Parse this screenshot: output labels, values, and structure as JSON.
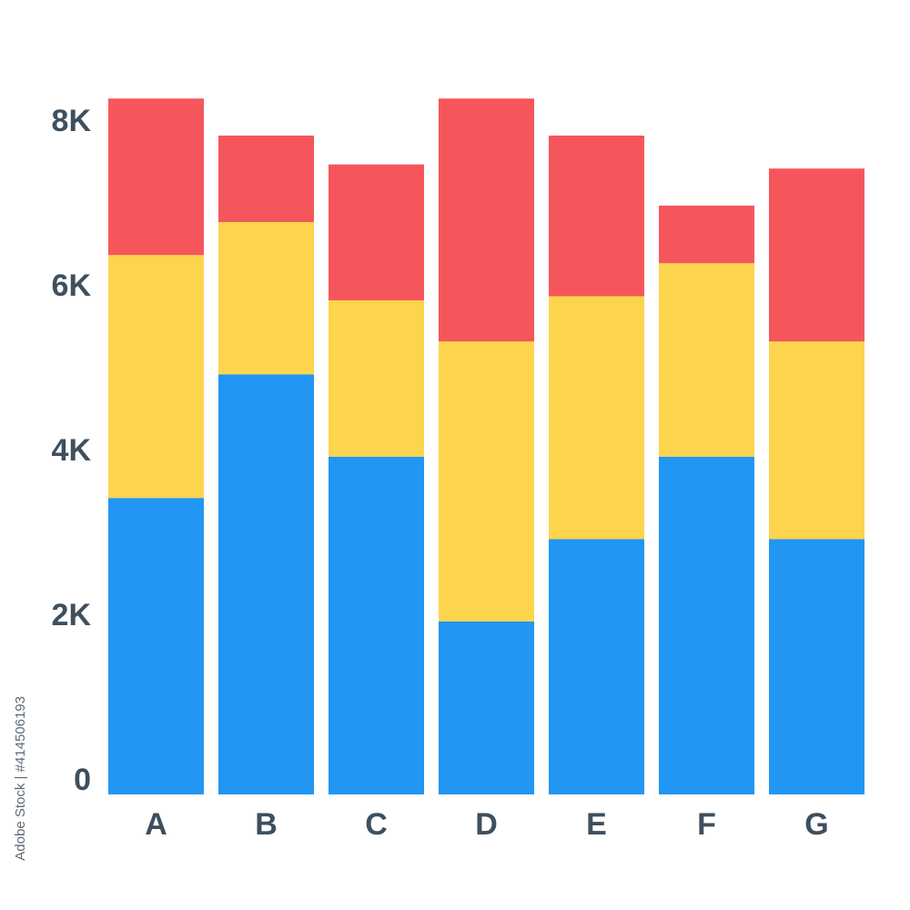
{
  "chart_data": {
    "type": "bar",
    "stacked": true,
    "categories": [
      "A",
      "B",
      "C",
      "D",
      "E",
      "F",
      "G"
    ],
    "series": [
      {
        "color": "#2196f3",
        "values": [
          3600,
          5100,
          4100,
          2100,
          3100,
          4100,
          3100
        ]
      },
      {
        "color": "#fdd44d",
        "values": [
          2950,
          1850,
          1900,
          3400,
          2950,
          2350,
          2400
        ]
      },
      {
        "color": "#f5565b",
        "values": [
          1900,
          1050,
          1650,
          2950,
          1950,
          700,
          2100
        ]
      }
    ],
    "yticks": [
      {
        "value": 0,
        "label": "0"
      },
      {
        "value": 2000,
        "label": "2K"
      },
      {
        "value": 4000,
        "label": "4K"
      },
      {
        "value": 6000,
        "label": "6K"
      },
      {
        "value": 8000,
        "label": "8K"
      }
    ],
    "ylim": [
      0,
      8800
    ],
    "grid": false,
    "legend": "none"
  },
  "watermark": {
    "id_text": "Adobe Stock | #414506193"
  }
}
